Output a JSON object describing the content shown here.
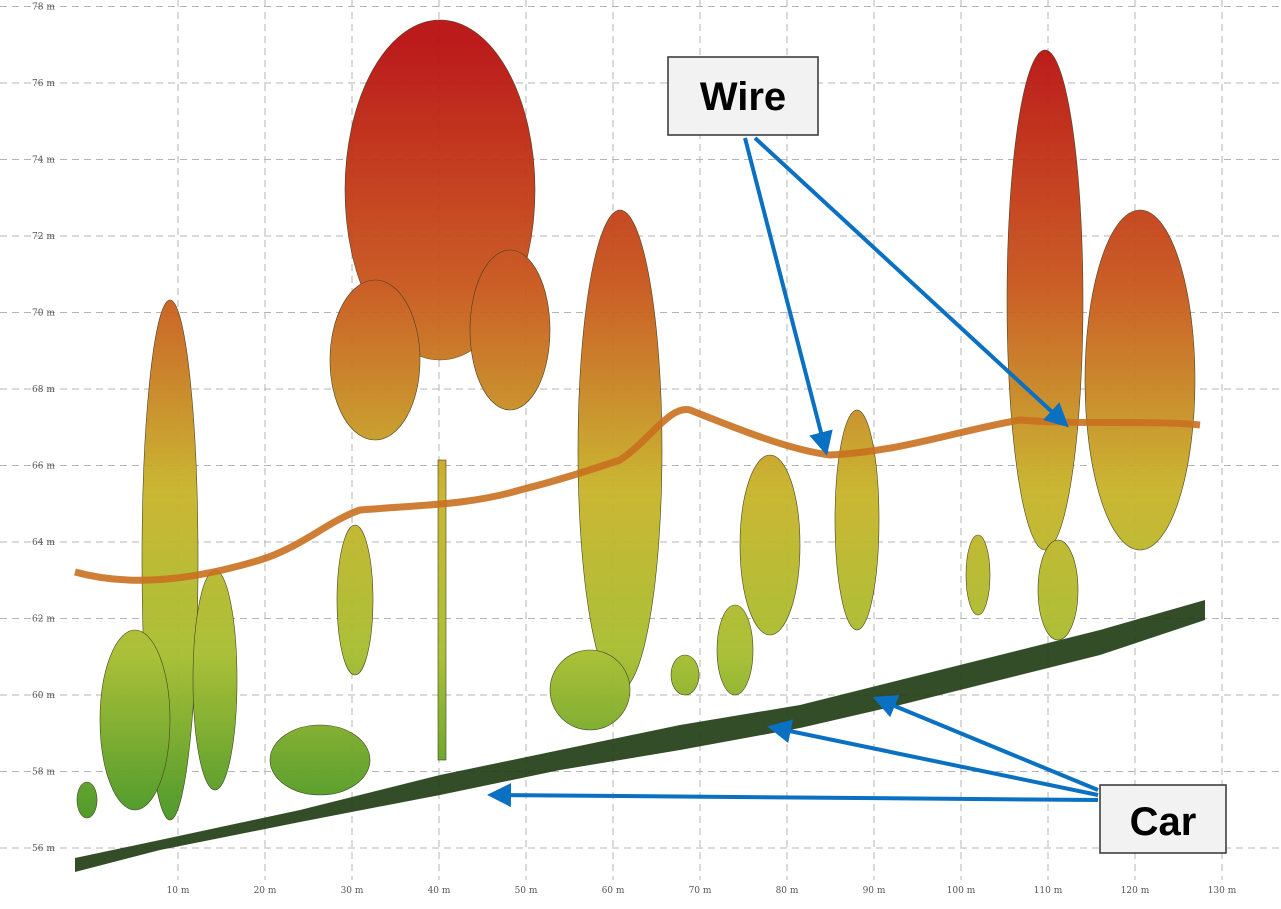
{
  "axes": {
    "y_labels": [
      "56 m",
      "58 m",
      "60 m",
      "62 m",
      "64 m",
      "66 m",
      "68 m",
      "70 m",
      "72 m",
      "74 m",
      "76 m",
      "78 m"
    ],
    "x_labels": [
      "10 m",
      "20 m",
      "30 m",
      "40 m",
      "50 m",
      "60 m",
      "70 m",
      "80 m",
      "90 m",
      "100 m",
      "110 m",
      "120 m",
      "130 m"
    ]
  },
  "annotations": {
    "wire": "Wire",
    "car": "Car"
  }
}
